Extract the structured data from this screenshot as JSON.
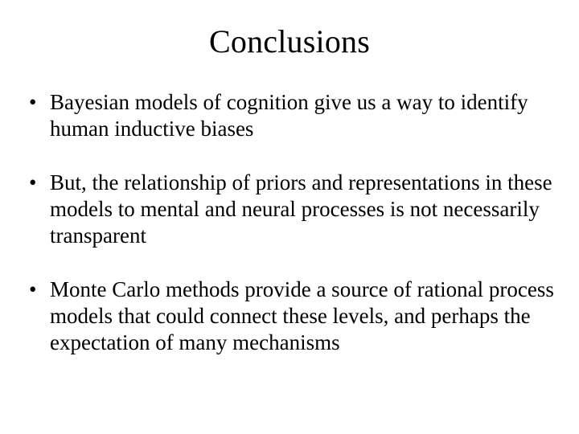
{
  "slide": {
    "title": "Conclusions",
    "title_fontsize": 40,
    "body_fontsize": 27,
    "font_family": "Times New Roman",
    "text_color": "#000000",
    "background_color": "#ffffff",
    "bullets": [
      "Bayesian models of cognition give us a way to identify human inductive biases",
      "But, the relationship of priors and representations in these models to mental and neural processes is not necessarily transparent",
      "Monte Carlo methods provide a source of rational process models that could connect these levels, and perhaps the expectation of many mechanisms"
    ]
  }
}
